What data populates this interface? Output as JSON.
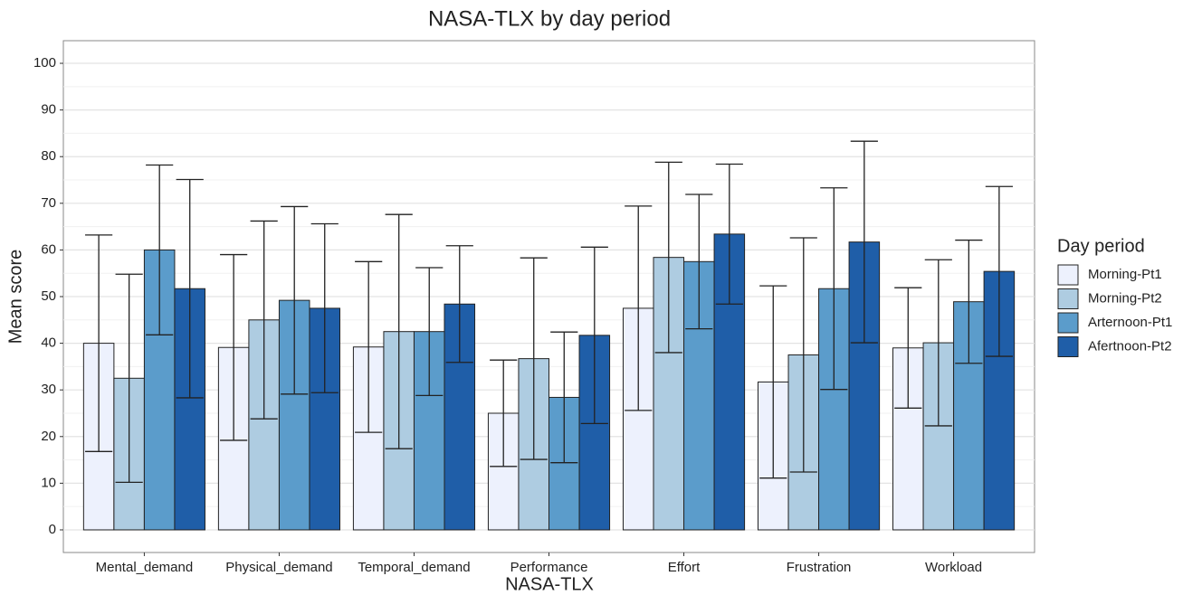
{
  "chart_data": {
    "type": "bar",
    "title": "NASA-TLX by day period",
    "x_label": "NASA-TLX",
    "y_label": "Mean score",
    "legend_title": "Day period",
    "categories": [
      "Mental_demand",
      "Physical_demand",
      "Temporal_demand",
      "Performance",
      "Effort",
      "Frustration",
      "Workload"
    ],
    "series": [
      {
        "name": "Morning-Pt1",
        "color": "#edf1fd",
        "values": [
          40,
          39.1,
          39.2,
          25,
          47.5,
          31.7,
          39
        ],
        "errors": [
          23.2,
          19.9,
          18.3,
          11.4,
          21.9,
          20.6,
          12.9
        ]
      },
      {
        "name": "Morning-Pt2",
        "color": "#aecce1",
        "values": [
          32.5,
          45,
          42.5,
          36.7,
          58.4,
          37.5,
          40.1
        ],
        "errors": [
          22.3,
          21.2,
          25.1,
          21.6,
          20.4,
          25.1,
          17.8
        ]
      },
      {
        "name": "Arternoon-Pt1",
        "color": "#5b9ccb",
        "values": [
          60,
          49.2,
          42.5,
          28.4,
          57.5,
          51.7,
          48.9
        ],
        "errors": [
          18.2,
          20.1,
          13.7,
          14,
          14.4,
          21.6,
          13.2
        ]
      },
      {
        "name": "Afertnoon-Pt2",
        "color": "#1f5ea8",
        "values": [
          51.7,
          47.5,
          48.4,
          41.7,
          63.4,
          61.7,
          55.4
        ],
        "errors": [
          23.4,
          18.1,
          12.5,
          18.9,
          15,
          21.6,
          18.2
        ]
      }
    ],
    "ylim": [
      -4.85,
      104.85
    ],
    "yticks": [
      0,
      10,
      20,
      30,
      40,
      50,
      60,
      70,
      80,
      90,
      100
    ],
    "grid": true,
    "legend_position": "right"
  }
}
